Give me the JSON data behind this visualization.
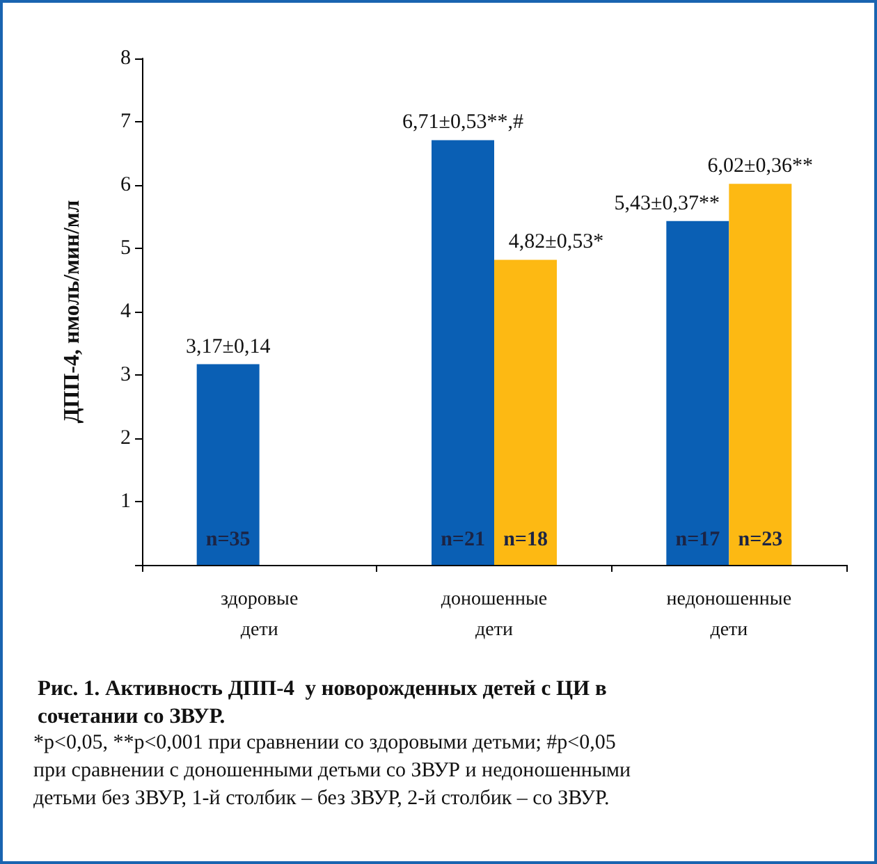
{
  "chart_data": {
    "type": "bar",
    "title": "Рис. 1. Активность ДПП-4  у новорожденных детей с ЦИ в сочетании со ЗВУР.",
    "ylabel": "ДПП-4, нмоль/мин/мл",
    "categories": [
      "здоровые дети",
      "доношенные дети",
      "недоношенные дети"
    ],
    "series": [
      {
        "color": "#0a5fb4",
        "values": [
          3.17,
          6.71,
          5.43
        ],
        "value_labels": [
          "3,17±0,14",
          "6,71±0,53**,#",
          "5,43±0,37**"
        ]
      },
      {
        "color": "#fdb913",
        "values": [
          null,
          4.82,
          6.02
        ],
        "value_labels": [
          null,
          "4,82±0,53*",
          "6,02±0,36**"
        ]
      }
    ],
    "ylim": [
      0,
      8
    ],
    "yticks": [
      {
        "value": 0,
        "label": null
      },
      1,
      2,
      3,
      4,
      5,
      6,
      7,
      8
    ],
    "grid": false,
    "annotations": [
      {
        "text": "n=35",
        "x": "здоровые дети",
        "y": 0.4
      },
      {
        "text": "n=21",
        "x": "доношенные дети",
        "y": 0.4
      },
      {
        "text": "n=18",
        "x": "доношенные дети",
        "y": 0.4
      },
      {
        "text": "n=17",
        "x": "недоношенные дети",
        "y": 0.4
      },
      {
        "text": "n=23",
        "x": "недоношенные дети",
        "y": 0.4
      },
      "*p<0,05, **p<0,001 при сравнении со здоровыми детьми; #p<0,05 при сравнении с доношенными детьми со ЗВУР и недоношенными детьми без ЗВУР, 1-й столбик – без ЗВУР, 2-й столбик – со ЗВУР."
    ]
  }
}
